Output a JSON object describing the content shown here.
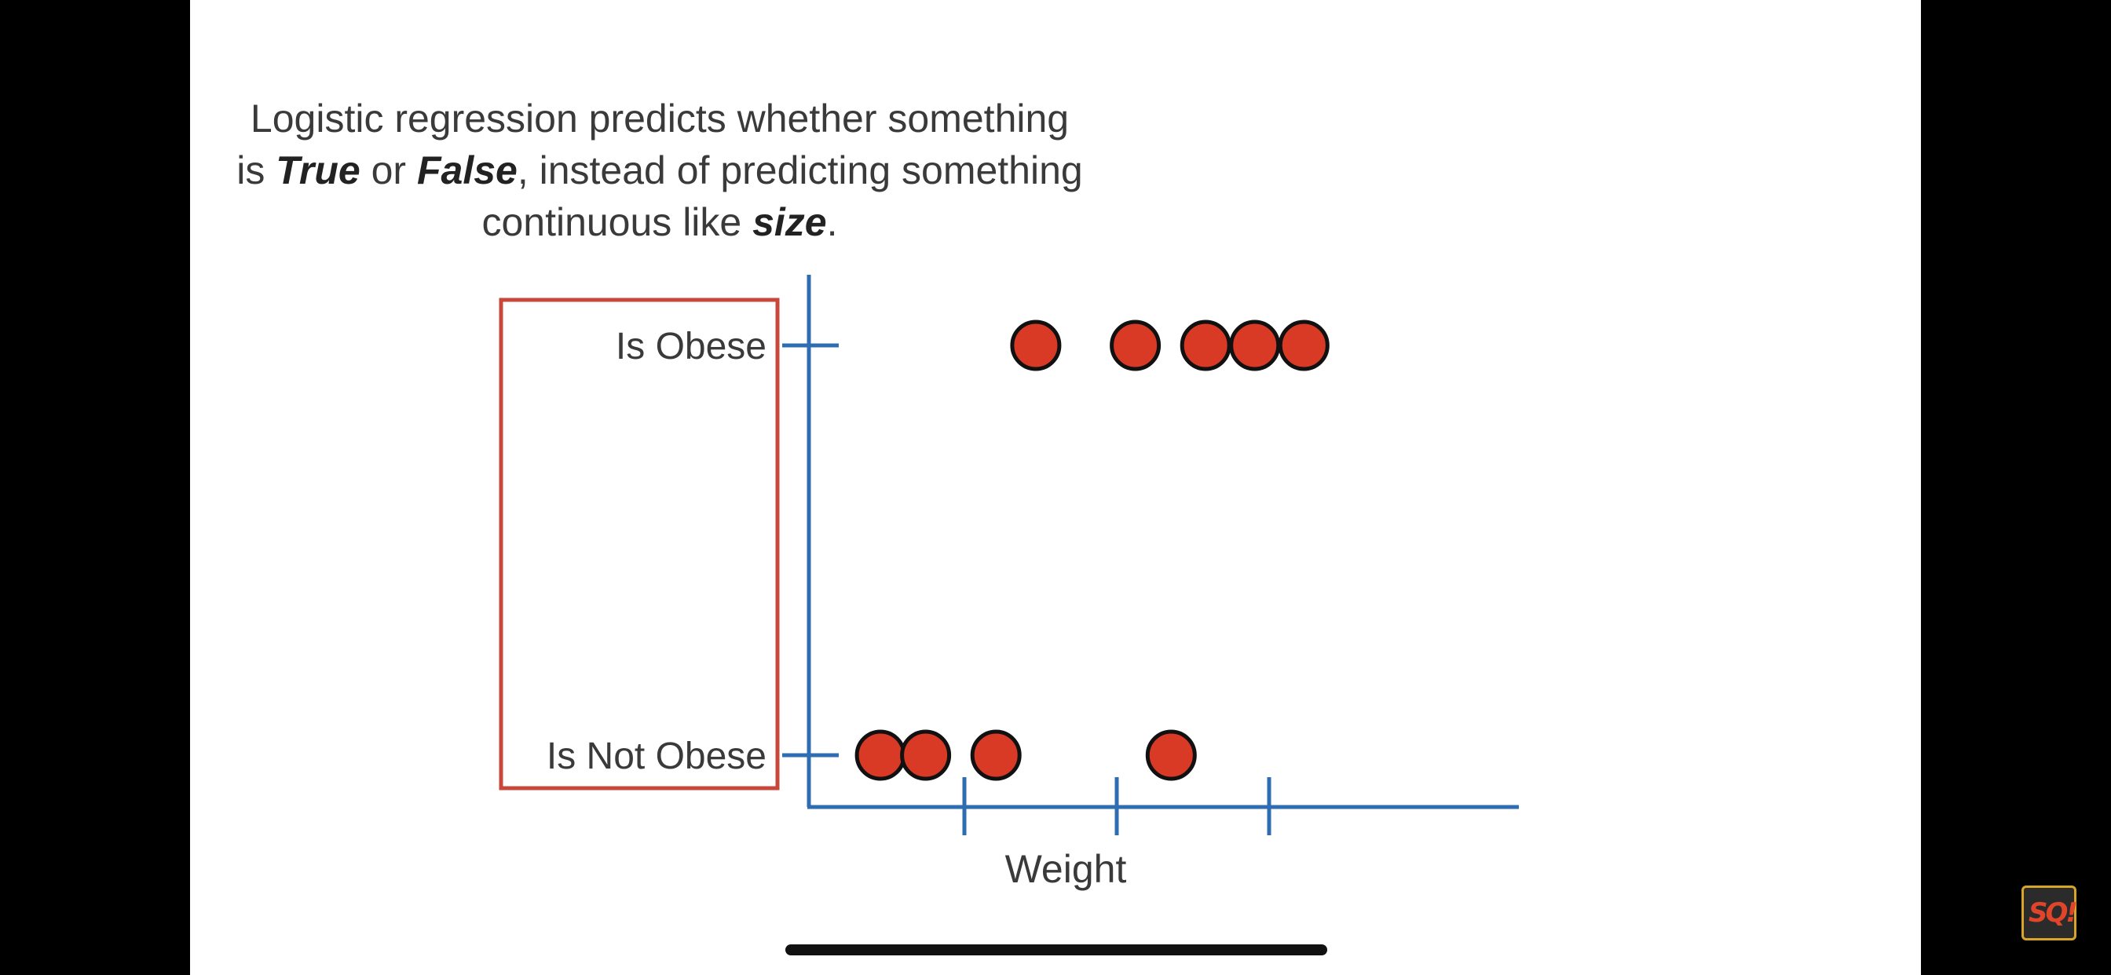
{
  "slide": {
    "caption": {
      "part1": "Logistic regression predicts whether something is ",
      "true_word": "True",
      "part2": " or ",
      "false_word": "False",
      "part3": ", instead of predicting something continuous like ",
      "size_word": "size",
      "part4": "."
    }
  },
  "chart_data": {
    "type": "scatter",
    "xlabel": "Weight",
    "y_categories": [
      "Is Not Obese",
      "Is Obese"
    ],
    "x_ticks": 3,
    "series": [
      {
        "values_class": "Is Obese",
        "x": [
          1.65,
          2.4,
          2.93,
          3.3,
          3.67
        ]
      },
      {
        "values_class": "Is Not Obese",
        "x": [
          0.48,
          0.82,
          1.35,
          2.67
        ]
      }
    ],
    "xlim": [
      0,
      4.6
    ],
    "highlight_box": "y-axis labels",
    "colors": {
      "axis": "#2f6db3",
      "point_fill": "#d93a26",
      "point_stroke": "#111111",
      "highlight": "#c8463a"
    }
  },
  "overlay": {
    "channel_logo_text": "SQ!"
  }
}
